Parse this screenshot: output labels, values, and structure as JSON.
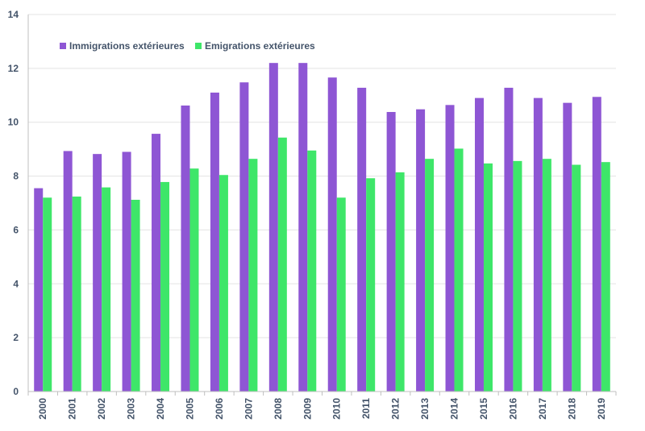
{
  "chart_data": {
    "type": "bar",
    "categories": [
      "2000",
      "2001",
      "2002",
      "2003",
      "2004",
      "2005",
      "2006",
      "2007",
      "2008",
      "2009",
      "2010",
      "2011",
      "2012",
      "2013",
      "2014",
      "2015",
      "2016",
      "2017",
      "2018",
      "2019"
    ],
    "series": [
      {
        "name": "Immigrations extérieures",
        "color": "#8e56d4",
        "values": [
          7.55,
          8.93,
          8.82,
          8.9,
          9.57,
          10.62,
          11.1,
          11.48,
          12.2,
          12.2,
          11.66,
          11.28,
          10.38,
          10.48,
          10.64,
          10.9,
          11.28,
          10.9,
          10.72,
          10.94
        ]
      },
      {
        "name": "Emigrations extérieures",
        "color": "#3ee669",
        "values": [
          7.2,
          7.24,
          7.58,
          7.12,
          7.78,
          8.28,
          8.04,
          8.64,
          9.43,
          8.95,
          7.2,
          7.92,
          8.14,
          8.64,
          9.02,
          8.47,
          8.56,
          8.64,
          8.42,
          8.52
        ]
      }
    ],
    "ylim": [
      0,
      14
    ],
    "yticks": [
      0,
      2,
      4,
      6,
      8,
      10,
      12,
      14
    ],
    "grid": true,
    "legend_position": "top-left",
    "xlabel": "",
    "ylabel": "",
    "title": ""
  }
}
